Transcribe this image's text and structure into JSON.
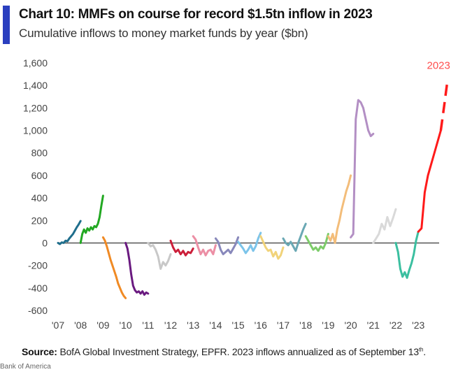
{
  "header": {
    "title": "Chart 10: MMFs on course for record $1.5tn inflow in 2023",
    "subtitle": "Cumulative inflows to money market funds by year ($bn)"
  },
  "footer": {
    "source_label": "Source:",
    "source_text": "BofA Global Investment Strategy, EPFR. 2023  inflows annualized as of September 13",
    "source_sup": "th",
    "source_end": ".",
    "credit": "Bank of America"
  },
  "chart_data": {
    "type": "line",
    "title": "Chart 10: MMFs on course for record $1.5tn inflow in 2023",
    "subtitle": "Cumulative inflows to money market funds by year ($bn)",
    "xlabel": "",
    "ylabel": "",
    "ylim": [
      -600,
      1600
    ],
    "yticks": [
      -600,
      -400,
      -200,
      0,
      200,
      400,
      600,
      800,
      1000,
      1200,
      1400,
      1600
    ],
    "ytick_labels": [
      "-600",
      "-400",
      "-200",
      "0",
      "200",
      "400",
      "600",
      "800",
      "1,000",
      "1,200",
      "1,400",
      "1,600"
    ],
    "xlim": [
      2007,
      2024
    ],
    "xtick_labels": [
      "'07",
      "'08",
      "'09",
      "'10",
      "'11",
      "'12",
      "'13",
      "'14",
      "'15",
      "'16",
      "'17",
      "'18",
      "'19",
      "'20",
      "'21",
      "'22",
      "'23"
    ],
    "grid": false,
    "zero_line": true,
    "annotation": {
      "text": "2023",
      "x": 2023.9,
      "y": 1480,
      "color": "#ff4d4d"
    },
    "series": [
      {
        "name": "2007",
        "color": "#1f6e8c",
        "x0": 2007,
        "values": [
          0,
          -10,
          5,
          0,
          20,
          15,
          40,
          60,
          80,
          110,
          140,
          165,
          195
        ]
      },
      {
        "name": "2008",
        "color": "#22a822",
        "x0": 2008,
        "values": [
          0,
          80,
          120,
          90,
          130,
          110,
          140,
          120,
          150,
          140,
          170,
          230,
          330,
          420
        ]
      },
      {
        "name": "2009",
        "color": "#f08a24",
        "x0": 2009,
        "values": [
          50,
          20,
          -30,
          -90,
          -150,
          -200,
          -250,
          -300,
          -360,
          -400,
          -440,
          -470,
          -490
        ]
      },
      {
        "name": "2010",
        "color": "#6a1a80",
        "x0": 2010,
        "values": [
          0,
          -50,
          -150,
          -280,
          -380,
          -420,
          -440,
          -430,
          -450,
          -430,
          -460,
          -440,
          -450
        ]
      },
      {
        "name": "2011",
        "color": "#c8c8c8",
        "x0": 2011,
        "values": [
          0,
          -30,
          -20,
          -60,
          -120,
          -230,
          -170,
          -200,
          -160,
          -100
        ]
      },
      {
        "name": "2012",
        "color": "#cc1f3a",
        "x0": 2012,
        "values": [
          20,
          -40,
          -80,
          -60,
          -100,
          -70,
          -110,
          -80,
          -90,
          -50
        ]
      },
      {
        "name": "2013",
        "color": "#ec8fa5",
        "x0": 2013,
        "values": [
          60,
          30,
          -40,
          -100,
          -60,
          -110,
          -70,
          -60,
          -100,
          -20
        ]
      },
      {
        "name": "2014",
        "color": "#8888bb",
        "x0": 2014,
        "values": [
          40,
          10,
          -60,
          -100,
          -80,
          -60,
          -90,
          -50,
          -10,
          50
        ]
      },
      {
        "name": "2015",
        "color": "#7cc4ea",
        "x0": 2015,
        "values": [
          10,
          -20,
          -50,
          -90,
          -60,
          -20,
          -70,
          -30,
          40,
          90
        ]
      },
      {
        "name": "2016",
        "color": "#f1d37a",
        "x0": 2016,
        "values": [
          60,
          10,
          -40,
          -70,
          -60,
          -120,
          -80,
          -140,
          -110,
          -40
        ]
      },
      {
        "name": "2017",
        "color": "#6aa8b4",
        "x0": 2017,
        "values": [
          40,
          0,
          -20,
          10,
          -30,
          -70,
          0,
          60,
          120,
          170
        ]
      },
      {
        "name": "2018",
        "color": "#7dcc6a",
        "x0": 2018,
        "values": [
          60,
          20,
          -20,
          -60,
          -40,
          -70,
          -30,
          -50,
          0,
          80
        ]
      },
      {
        "name": "2019",
        "color": "#f3bd7a",
        "x0": 2019,
        "values": [
          60,
          20,
          80,
          0,
          120,
          200,
          300,
          380,
          460,
          520,
          600
        ]
      },
      {
        "name": "2020",
        "color": "#b38fc4",
        "x0": 2020,
        "values": [
          50,
          80,
          1100,
          1270,
          1250,
          1200,
          1100,
          1000,
          950,
          970
        ]
      },
      {
        "name": "2021",
        "color": "#d9d9d9",
        "x0": 2021,
        "values": [
          0,
          40,
          80,
          170,
          120,
          230,
          150,
          220,
          300
        ]
      },
      {
        "name": "2022",
        "color": "#3bbfa0",
        "x0": 2022,
        "values": [
          0,
          -80,
          -230,
          -300,
          -260,
          -310,
          -240,
          -180,
          -100,
          20,
          100
        ]
      },
      {
        "name": "2023",
        "color": "#ff1a1a",
        "x0": 2023,
        "values": [
          100,
          130,
          450,
          600,
          700,
          800,
          900,
          1000
        ],
        "projected": [
          1000,
          1220,
          1450
        ]
      }
    ]
  }
}
